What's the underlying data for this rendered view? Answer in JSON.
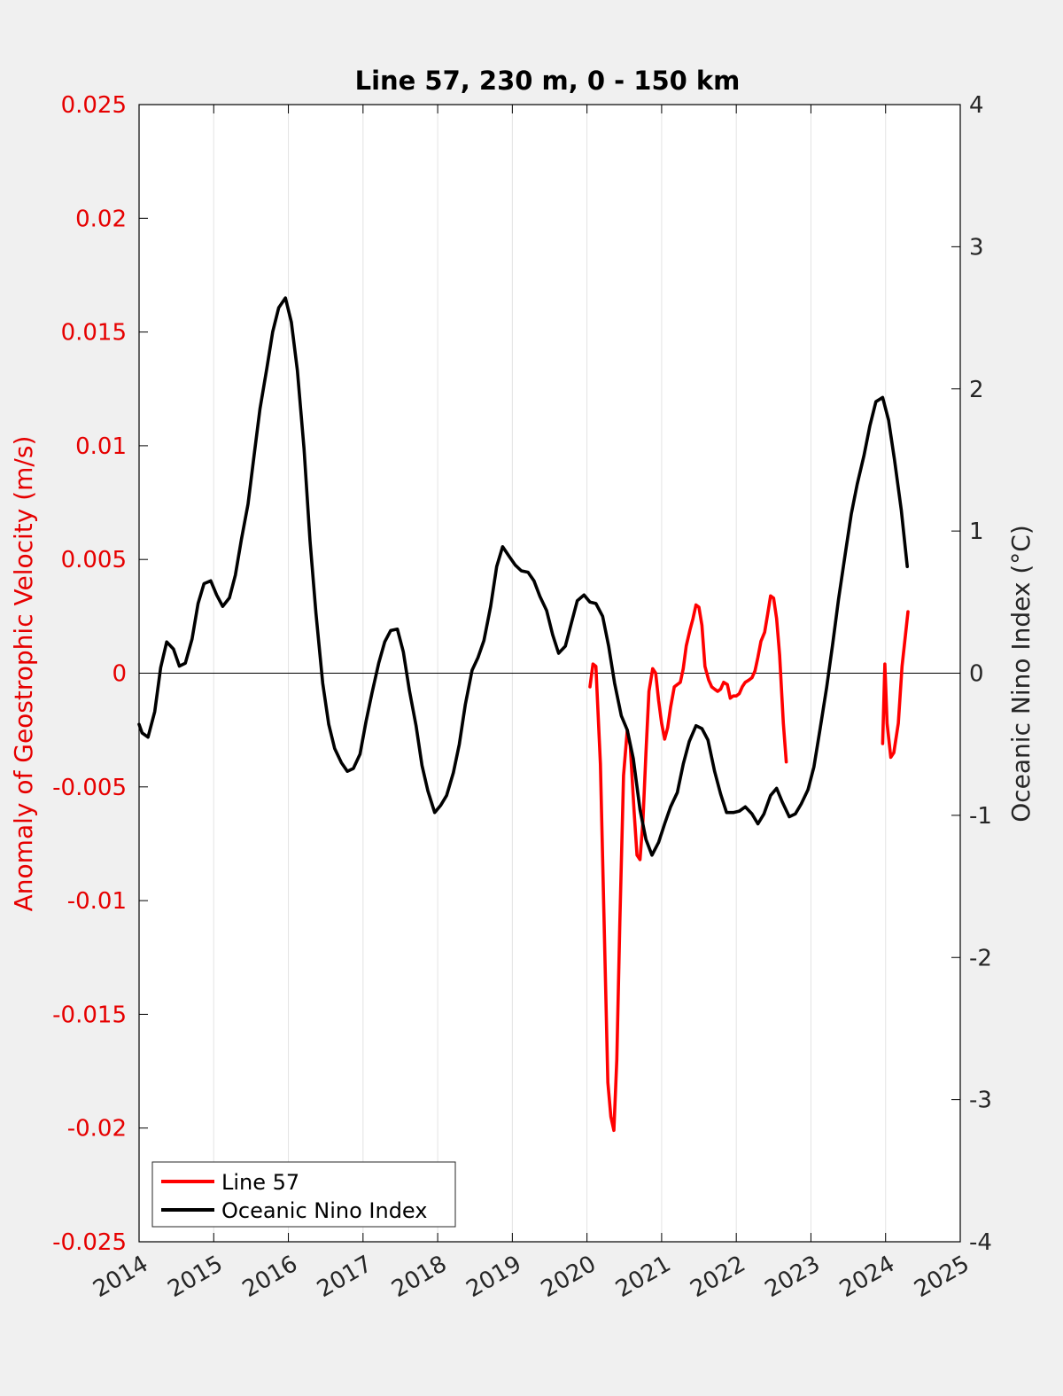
{
  "chart_data": {
    "type": "line",
    "title": "Line 57, 230 m, 0 - 150 km",
    "xlim": [
      2014,
      2025
    ],
    "xticks": [
      "2014",
      "2015",
      "2016",
      "2017",
      "2018",
      "2019",
      "2020",
      "2021",
      "2022",
      "2023",
      "2024",
      "2025"
    ],
    "y_left": {
      "label": "Anomaly of Geostrophic Velocity (m/s)",
      "ylim": [
        -0.025,
        0.025
      ],
      "ticks": [
        "0.025",
        "0.02",
        "0.015",
        "0.01",
        "0.005",
        "0",
        "-0.005",
        "-0.01",
        "-0.015",
        "-0.02",
        "-0.025"
      ],
      "color": "#e60000"
    },
    "y_right": {
      "label": "Oceanic Nino Index (°C)",
      "ylim": [
        -4,
        4
      ],
      "ticks": [
        "4",
        "3",
        "2",
        "1",
        "0",
        "-1",
        "-2",
        "-3",
        "-4"
      ],
      "color": "#000000"
    },
    "grid": "vertical",
    "zero_line": true,
    "legend": {
      "position": "bottom-left"
    },
    "series": [
      {
        "name": "Line 57",
        "axis": "left",
        "color": "#ff0000",
        "segments": [
          [
            [
              2020.04,
              -0.0006
            ],
            [
              2020.08,
              0.0004
            ],
            [
              2020.12,
              0.0003
            ],
            [
              2020.18,
              -0.004
            ],
            [
              2020.23,
              -0.011
            ],
            [
              2020.28,
              -0.018
            ],
            [
              2020.32,
              -0.0195
            ],
            [
              2020.36,
              -0.0201
            ],
            [
              2020.4,
              -0.017
            ],
            [
              2020.44,
              -0.011
            ],
            [
              2020.49,
              -0.0045
            ],
            [
              2020.54,
              -0.0025
            ],
            [
              2020.58,
              -0.0032
            ],
            [
              2020.63,
              -0.006
            ],
            [
              2020.67,
              -0.008
            ],
            [
              2020.71,
              -0.0082
            ],
            [
              2020.75,
              -0.0065
            ],
            [
              2020.79,
              -0.0035
            ],
            [
              2020.83,
              -0.0008
            ],
            [
              2020.88,
              0.0002
            ],
            [
              2020.92,
              0.0
            ],
            [
              2020.96,
              -0.0012
            ],
            [
              2021.0,
              -0.0022
            ],
            [
              2021.04,
              -0.0029
            ],
            [
              2021.08,
              -0.0024
            ],
            [
              2021.12,
              -0.0015
            ],
            [
              2021.17,
              -0.0006
            ],
            [
              2021.21,
              -0.0005
            ],
            [
              2021.25,
              -0.0004
            ],
            [
              2021.29,
              0.0002
            ],
            [
              2021.33,
              0.0012
            ],
            [
              2021.38,
              0.0019
            ],
            [
              2021.42,
              0.0024
            ],
            [
              2021.46,
              0.003
            ],
            [
              2021.5,
              0.0029
            ],
            [
              2021.54,
              0.0021
            ],
            [
              2021.58,
              0.0003
            ],
            [
              2021.63,
              -0.0003
            ],
            [
              2021.67,
              -0.0006
            ],
            [
              2021.71,
              -0.0007
            ],
            [
              2021.75,
              -0.0008
            ],
            [
              2021.79,
              -0.0007
            ],
            [
              2021.83,
              -0.0004
            ],
            [
              2021.88,
              -0.0005
            ],
            [
              2021.92,
              -0.0011
            ],
            [
              2021.96,
              -0.001
            ],
            [
              2022.0,
              -0.001
            ],
            [
              2022.04,
              -0.0009
            ],
            [
              2022.08,
              -0.0006
            ],
            [
              2022.12,
              -0.0004
            ],
            [
              2022.17,
              -0.0003
            ],
            [
              2022.21,
              -0.0002
            ],
            [
              2022.25,
              0.0001
            ],
            [
              2022.29,
              0.0007
            ],
            [
              2022.33,
              0.0014
            ],
            [
              2022.38,
              0.0018
            ],
            [
              2022.42,
              0.0026
            ],
            [
              2022.46,
              0.0034
            ],
            [
              2022.5,
              0.0033
            ],
            [
              2022.54,
              0.0024
            ],
            [
              2022.58,
              0.0008
            ],
            [
              2022.63,
              -0.0022
            ],
            [
              2022.67,
              -0.0039
            ]
          ],
          [
            [
              2023.96,
              -0.0031
            ],
            [
              2023.99,
              0.0004
            ],
            [
              2024.02,
              -0.0022
            ],
            [
              2024.07,
              -0.0037
            ],
            [
              2024.11,
              -0.0035
            ],
            [
              2024.17,
              -0.0022
            ],
            [
              2024.22,
              0.0003
            ],
            [
              2024.3,
              0.0027
            ]
          ]
        ]
      },
      {
        "name": "Oceanic Nino Index",
        "axis": "right",
        "color": "#000000",
        "points": [
          [
            2014.0,
            -0.36
          ],
          [
            2014.04,
            -0.42
          ],
          [
            2014.12,
            -0.45
          ],
          [
            2014.21,
            -0.27
          ],
          [
            2014.29,
            0.04
          ],
          [
            2014.37,
            0.22
          ],
          [
            2014.46,
            0.17
          ],
          [
            2014.54,
            0.05
          ],
          [
            2014.62,
            0.07
          ],
          [
            2014.71,
            0.24
          ],
          [
            2014.79,
            0.49
          ],
          [
            2014.87,
            0.63
          ],
          [
            2014.96,
            0.65
          ],
          [
            2015.04,
            0.55
          ],
          [
            2015.12,
            0.47
          ],
          [
            2015.21,
            0.53
          ],
          [
            2015.29,
            0.69
          ],
          [
            2015.37,
            0.94
          ],
          [
            2015.46,
            1.19
          ],
          [
            2015.54,
            1.53
          ],
          [
            2015.62,
            1.86
          ],
          [
            2015.71,
            2.14
          ],
          [
            2015.79,
            2.4
          ],
          [
            2015.87,
            2.57
          ],
          [
            2015.96,
            2.64
          ],
          [
            2016.04,
            2.47
          ],
          [
            2016.12,
            2.13
          ],
          [
            2016.21,
            1.58
          ],
          [
            2016.29,
            0.93
          ],
          [
            2016.37,
            0.42
          ],
          [
            2016.46,
            -0.07
          ],
          [
            2016.54,
            -0.36
          ],
          [
            2016.62,
            -0.53
          ],
          [
            2016.71,
            -0.63
          ],
          [
            2016.79,
            -0.69
          ],
          [
            2016.87,
            -0.67
          ],
          [
            2016.96,
            -0.57
          ],
          [
            2017.04,
            -0.34
          ],
          [
            2017.12,
            -0.14
          ],
          [
            2017.21,
            0.07
          ],
          [
            2017.29,
            0.22
          ],
          [
            2017.37,
            0.3
          ],
          [
            2017.46,
            0.31
          ],
          [
            2017.54,
            0.15
          ],
          [
            2017.62,
            -0.12
          ],
          [
            2017.71,
            -0.37
          ],
          [
            2017.79,
            -0.65
          ],
          [
            2017.87,
            -0.83
          ],
          [
            2017.96,
            -0.98
          ],
          [
            2018.04,
            -0.93
          ],
          [
            2018.12,
            -0.86
          ],
          [
            2018.21,
            -0.7
          ],
          [
            2018.29,
            -0.5
          ],
          [
            2018.37,
            -0.22
          ],
          [
            2018.46,
            0.02
          ],
          [
            2018.54,
            0.11
          ],
          [
            2018.62,
            0.23
          ],
          [
            2018.71,
            0.47
          ],
          [
            2018.79,
            0.75
          ],
          [
            2018.87,
            0.89
          ],
          [
            2018.96,
            0.82
          ],
          [
            2019.04,
            0.76
          ],
          [
            2019.12,
            0.72
          ],
          [
            2019.21,
            0.71
          ],
          [
            2019.29,
            0.65
          ],
          [
            2019.37,
            0.54
          ],
          [
            2019.46,
            0.44
          ],
          [
            2019.54,
            0.27
          ],
          [
            2019.62,
            0.14
          ],
          [
            2019.71,
            0.19
          ],
          [
            2019.79,
            0.35
          ],
          [
            2019.87,
            0.51
          ],
          [
            2019.96,
            0.55
          ],
          [
            2020.04,
            0.5
          ],
          [
            2020.12,
            0.49
          ],
          [
            2020.21,
            0.4
          ],
          [
            2020.29,
            0.19
          ],
          [
            2020.37,
            -0.07
          ],
          [
            2020.46,
            -0.3
          ],
          [
            2020.54,
            -0.4
          ],
          [
            2020.62,
            -0.6
          ],
          [
            2020.71,
            -0.96
          ],
          [
            2020.79,
            -1.17
          ],
          [
            2020.87,
            -1.28
          ],
          [
            2020.96,
            -1.19
          ],
          [
            2021.04,
            -1.06
          ],
          [
            2021.12,
            -0.94
          ],
          [
            2021.21,
            -0.84
          ],
          [
            2021.29,
            -0.64
          ],
          [
            2021.37,
            -0.48
          ],
          [
            2021.46,
            -0.37
          ],
          [
            2021.54,
            -0.39
          ],
          [
            2021.62,
            -0.47
          ],
          [
            2021.71,
            -0.69
          ],
          [
            2021.79,
            -0.85
          ],
          [
            2021.87,
            -0.98
          ],
          [
            2021.96,
            -0.98
          ],
          [
            2022.04,
            -0.97
          ],
          [
            2022.12,
            -0.94
          ],
          [
            2022.21,
            -0.99
          ],
          [
            2022.29,
            -1.06
          ],
          [
            2022.37,
            -0.99
          ],
          [
            2022.46,
            -0.86
          ],
          [
            2022.54,
            -0.81
          ],
          [
            2022.62,
            -0.91
          ],
          [
            2022.71,
            -1.01
          ],
          [
            2022.79,
            -0.99
          ],
          [
            2022.87,
            -0.92
          ],
          [
            2022.96,
            -0.82
          ],
          [
            2023.04,
            -0.66
          ],
          [
            2023.12,
            -0.4
          ],
          [
            2023.21,
            -0.1
          ],
          [
            2023.29,
            0.2
          ],
          [
            2023.37,
            0.52
          ],
          [
            2023.46,
            0.84
          ],
          [
            2023.54,
            1.12
          ],
          [
            2023.62,
            1.33
          ],
          [
            2023.71,
            1.53
          ],
          [
            2023.79,
            1.74
          ],
          [
            2023.87,
            1.91
          ],
          [
            2023.96,
            1.94
          ],
          [
            2024.04,
            1.78
          ],
          [
            2024.12,
            1.5
          ],
          [
            2024.21,
            1.15
          ],
          [
            2024.29,
            0.75
          ]
        ]
      }
    ]
  }
}
